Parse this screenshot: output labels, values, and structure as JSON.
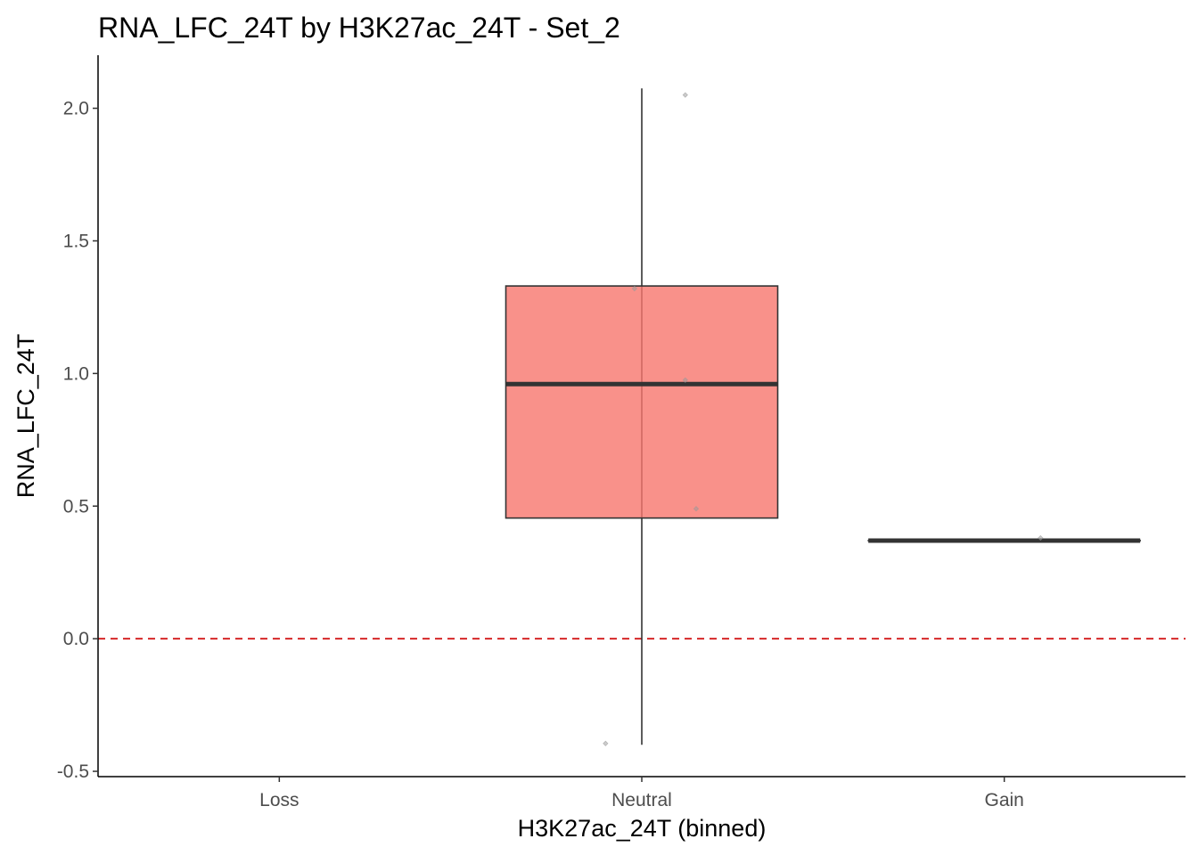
{
  "chart_data": {
    "type": "box",
    "title": "RNA_LFC_24T by H3K27ac_24T - Set_2",
    "xlabel": "H3K27ac_24T (binned)",
    "ylabel": "RNA_LFC_24T",
    "categories": [
      "Loss",
      "Neutral",
      "Gain"
    ],
    "ylim": [
      -0.52,
      2.2
    ],
    "yticks": [
      -0.5,
      0.0,
      0.5,
      1.0,
      1.5,
      2.0
    ],
    "ytick_labels": [
      "-0.5",
      "0.0",
      "0.5",
      "1.0",
      "1.5",
      "2.0"
    ],
    "reference_line": {
      "y": 0.0,
      "style": "dashed",
      "color": "#d62728"
    },
    "boxes": [
      {
        "category": "Neutral",
        "min": -0.4,
        "q1": 0.455,
        "median": 0.96,
        "q3": 1.33,
        "max": 2.075
      },
      {
        "category": "Gain",
        "min": 0.37,
        "q1": 0.37,
        "median": 0.37,
        "q3": 0.37,
        "max": 0.37
      }
    ],
    "points": [
      {
        "category": "Neutral",
        "y": 2.05,
        "jitter": 0.12
      },
      {
        "category": "Neutral",
        "y": 1.32,
        "jitter": -0.02
      },
      {
        "category": "Neutral",
        "y": 0.975,
        "jitter": 0.12
      },
      {
        "category": "Neutral",
        "y": 0.49,
        "jitter": 0.15
      },
      {
        "category": "Neutral",
        "y": -0.395,
        "jitter": -0.1
      },
      {
        "category": "Gain",
        "y": 0.38,
        "jitter": 0.1
      }
    ],
    "legend": "none",
    "grid": false,
    "colors": {
      "box_fill": "#f8766d",
      "box_stroke": "#333333",
      "median": "#333333",
      "point": "#999999",
      "axis": "#000000"
    }
  }
}
